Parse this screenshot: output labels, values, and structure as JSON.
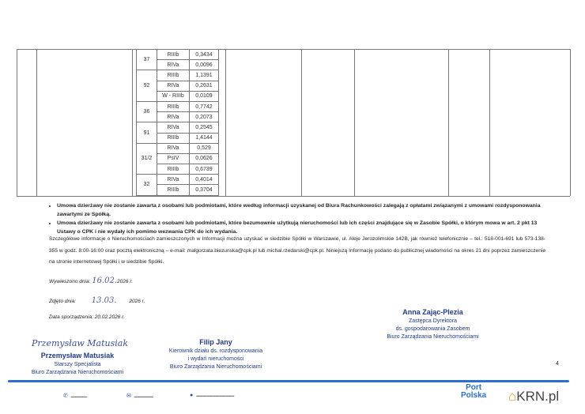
{
  "table": {
    "groups": [
      {
        "plot": "37",
        "rows": [
          {
            "class": "RIIIb",
            "area": "0,3434"
          },
          {
            "class": "RIVa",
            "area": "0,0096"
          }
        ]
      },
      {
        "plot": "92",
        "rows": [
          {
            "class": "RIIIb",
            "area": "1,1391"
          },
          {
            "class": "RIVa",
            "area": "0,2631"
          },
          {
            "class": "W - RIIIb",
            "area": "0,0109"
          }
        ]
      },
      {
        "plot": "36",
        "rows": [
          {
            "class": "RIIIb",
            "area": "0,7742"
          },
          {
            "class": "RIVa",
            "area": "0,2073"
          }
        ]
      },
      {
        "plot": "91",
        "rows": [
          {
            "class": "RIVa",
            "area": "0,2545"
          },
          {
            "class": "RIIIb",
            "area": "1,4144"
          }
        ]
      },
      {
        "plot": "31/2",
        "rows": [
          {
            "class": "RIVa",
            "area": "0,529"
          },
          {
            "class": "PsIV",
            "area": "0,0626"
          },
          {
            "class": "RIIIb",
            "area": "0,6739"
          }
        ]
      },
      {
        "plot": "32",
        "rows": [
          {
            "class": "RIVa",
            "area": "0,4014"
          },
          {
            "class": "RIIIb",
            "area": "0,3704"
          }
        ]
      }
    ]
  },
  "bullets": [
    "Umowa dzierżawy nie zostanie zawarta z osobami lub podmiotami, które według informacji uzyskanej od Biura Rachunkowości zalegają z opłatami związanymi z umowami rozdysponowania zawartymi ze Spółką.",
    "Umowa dzierżawy nie zostanie zawarta z osobami lub podmiotami, które bezumownie użytkują nieruchomości lub ich części znajdujące się w Zasobie Spółki, o którym mowa w art. 2 pkt 13 Ustawy o CPK i nie wydały ich pomimo wezwania CPK do ich wydania."
  ],
  "paragraph": "Szczegółowe informacje o Nieruchomościach zamieszczonych w Informacji można uzyskać w siedzibie Spółki w Warszawie, ul. Aleje Jerozolimskie 142B, jak również telefonicznie – tel.: 518-001-691 lub 573-138-355 w godz. 8:00-16:00 oraz pocztą elektroniczną – e-mail: malgorzata.biezunska@cpk.pl lub michal.rzedarski@cpk.pl. Niniejszą Informację podano do publicznej wiadomości na okres 21 dni poprzez zamieszczenie na stronie internetowej Spółki i w siedzibie Spółki.",
  "meta": {
    "posted_label": "Wywieszono dnia:",
    "posted_value": "16.02.",
    "posted_year": "2026 r.",
    "removed_label": "Zdjęto dnia:",
    "removed_value": "13.03.",
    "removed_year": "2026 r.",
    "prepared": "Data sporządzenia: 20.02.2026 r."
  },
  "signatures": {
    "left": {
      "scribble": "Przemysław Matusiak",
      "name": "Przemysław Matusiak",
      "title": "Starszy Specjalista",
      "dept": "Biuro Zarządzania Nieruchomościami"
    },
    "middle": {
      "name": "Filip Jany",
      "title1": "Kierownik działu ds. rozdysponowania",
      "title2": "i wydań nieruchomości",
      "dept": "Biuro Zarządzania Nieruchomościami"
    },
    "right": {
      "name": "Anna Zając-Plezia",
      "title1": "Zastępca Dyrektora",
      "title2": "ds. gospodarowania Zasobem",
      "dept": "Biuro Zarządzania Nieruchomościami"
    }
  },
  "page_number": "4",
  "footer": {
    "logo_line1": "Port",
    "logo_line2": "Polska",
    "watermark": "KRN.pl",
    "accent": "#2a6fd1"
  }
}
